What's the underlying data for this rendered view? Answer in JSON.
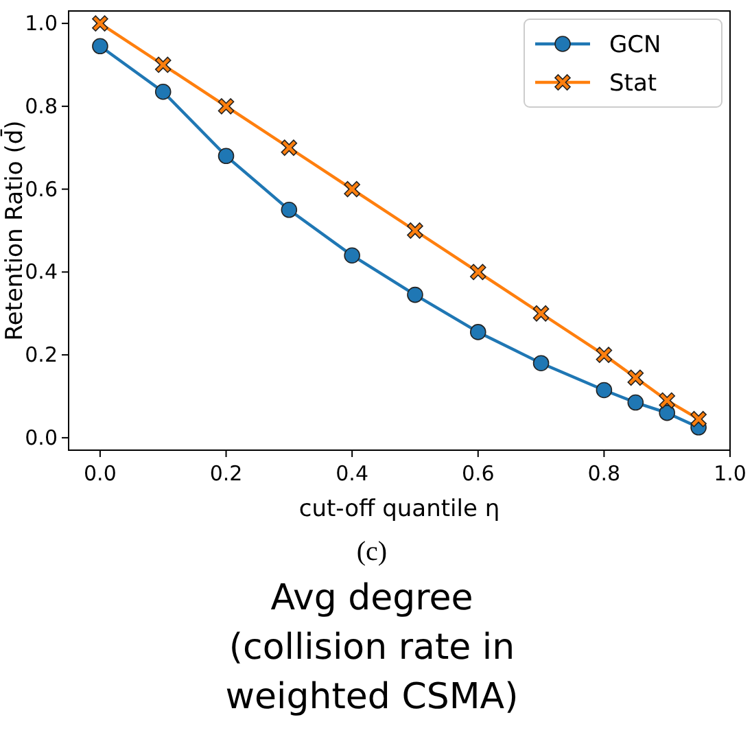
{
  "chart_data": {
    "type": "line",
    "xlabel": "cut-off quantile η",
    "ylabel": "Retention Ratio (d̄)",
    "xlim": [
      -0.05,
      1.0
    ],
    "ylim": [
      -0.03,
      1.03
    ],
    "xticks": [
      {
        "value": 0,
        "label": "0.0"
      },
      0.2,
      0.4,
      0.6,
      0.8,
      {
        "value": 1,
        "label": "1.0"
      }
    ],
    "yticks": [
      {
        "value": 0,
        "label": "0.0"
      },
      0.2,
      0.4,
      0.6,
      0.8,
      {
        "value": 1,
        "label": "1.0"
      }
    ],
    "legend": "top right",
    "grid": false,
    "series": [
      {
        "name": "GCN",
        "color": "#1f77b4",
        "marker": "circle",
        "x": [
          0,
          0.1,
          0.2,
          0.3,
          0.4,
          0.5,
          0.6,
          0.7,
          0.8,
          0.85,
          0.9,
          0.95
        ],
        "values": [
          0.945,
          0.835,
          0.68,
          0.55,
          0.44,
          0.345,
          0.255,
          0.18,
          0.115,
          0.085,
          0.06,
          0.025
        ]
      },
      {
        "name": "Stat",
        "color": "#ff7f0e",
        "marker": "cross",
        "x": [
          0,
          0.1,
          0.2,
          0.3,
          0.4,
          0.5,
          0.6,
          0.7,
          0.8,
          0.85,
          0.9,
          0.95
        ],
        "values": [
          1.0,
          0.9,
          0.8,
          0.7,
          0.6,
          0.5,
          0.4,
          0.3,
          0.2,
          0.145,
          0.09,
          0.045
        ]
      }
    ],
    "annotations": [
      "(c)",
      "Avg degree",
      "(collision rate in",
      "weighted CSMA)"
    ]
  }
}
